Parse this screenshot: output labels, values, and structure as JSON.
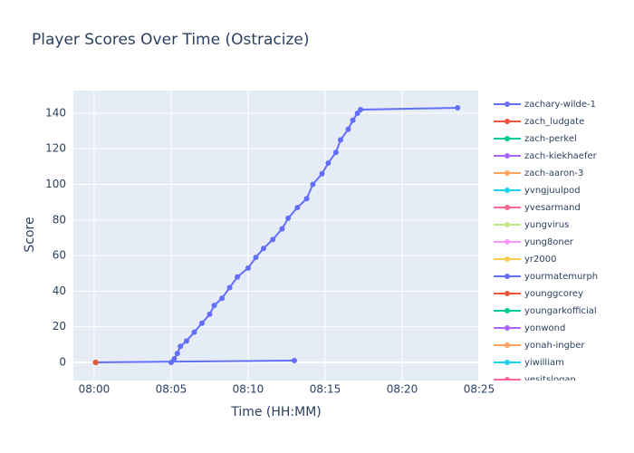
{
  "chart_data": {
    "type": "line",
    "title": "Player Scores Over Time (Ostracize)",
    "x_label": "Time (HH:MM)",
    "y_label": "Score",
    "xlim": [
      -1.35,
      24.94
    ],
    "ylim": [
      -10.2,
      152.7
    ],
    "xticks": [
      {
        "value": 0,
        "label": "08:00"
      },
      {
        "value": 5,
        "label": "08:05"
      },
      {
        "value": 10,
        "label": "08:10"
      },
      {
        "value": 15,
        "label": "08:15"
      },
      {
        "value": 20,
        "label": "08:20"
      },
      {
        "value": 25,
        "label": "08:25"
      }
    ],
    "yticks": [
      0,
      20,
      40,
      60,
      80,
      100,
      120,
      140
    ],
    "grid": true,
    "series": [
      {
        "name": "zachary-wilde-1",
        "color": "#636efa",
        "x": [
          5.0,
          5.2,
          5.4,
          5.6,
          6.0,
          6.5,
          7.0,
          7.5,
          7.8,
          8.3,
          8.8,
          9.3,
          10.0,
          10.5,
          11.0,
          11.6,
          12.2,
          12.6,
          13.2,
          13.8,
          14.2,
          14.8,
          15.2,
          15.7,
          16.0,
          16.5,
          16.8,
          17.1,
          17.3,
          23.6
        ],
        "values": [
          0,
          2,
          5,
          9,
          12,
          17,
          22,
          27,
          32,
          36,
          42,
          48,
          53,
          59,
          64,
          69,
          75,
          81,
          87,
          92,
          100,
          106,
          112,
          118,
          125,
          131,
          136,
          140,
          142,
          143
        ]
      },
      {
        "name": "zach_ludgate",
        "color": "#EF553B",
        "x": [
          0.1
        ],
        "values": [
          0
        ]
      },
      {
        "name": "zach-perkel",
        "color": "#00cc96",
        "x": [
          0.1
        ],
        "values": [
          0
        ]
      },
      {
        "name": "zach-kiekhaefer",
        "color": "#ab63fa",
        "x": [
          0.1
        ],
        "values": [
          0
        ]
      },
      {
        "name": "zach-aaron-3",
        "color": "#FFA15A",
        "x": [
          0.1
        ],
        "values": [
          0
        ]
      },
      {
        "name": "yvngjuulpod",
        "color": "#19d3f3",
        "x": [
          0.1
        ],
        "values": [
          0
        ]
      },
      {
        "name": "yvesarmand",
        "color": "#FF6692",
        "x": [
          0.1
        ],
        "values": [
          0
        ]
      },
      {
        "name": "yungvirus",
        "color": "#B6E880",
        "x": [
          0.1
        ],
        "values": [
          0
        ]
      },
      {
        "name": "yung8oner",
        "color": "#FF97FF",
        "x": [
          0.1
        ],
        "values": [
          0
        ]
      },
      {
        "name": "yr2000",
        "color": "#FECB52",
        "x": [
          0.1
        ],
        "values": [
          0
        ]
      },
      {
        "name": "yourmatemurph",
        "color": "#636efa",
        "x": [
          0.1,
          13.0
        ],
        "values": [
          0,
          1
        ]
      },
      {
        "name": "younggcorey",
        "color": "#EF553B",
        "x": [
          0.1
        ],
        "values": [
          0
        ]
      },
      {
        "name": "youngarkofficial",
        "color": "#00cc96",
        "x": [
          0.1
        ],
        "values": [
          0
        ]
      },
      {
        "name": "yonwond",
        "color": "#ab63fa",
        "x": [
          0.1
        ],
        "values": [
          0
        ]
      },
      {
        "name": "yonah-ingber",
        "color": "#FFA15A",
        "x": [
          0.1
        ],
        "values": [
          0
        ]
      },
      {
        "name": "yiwilliam",
        "color": "#19d3f3",
        "x": [
          0.1
        ],
        "values": [
          0
        ]
      },
      {
        "name": "yesitslogan",
        "color": "#FF6692",
        "x": [
          0.1
        ],
        "values": [
          0
        ]
      }
    ]
  }
}
